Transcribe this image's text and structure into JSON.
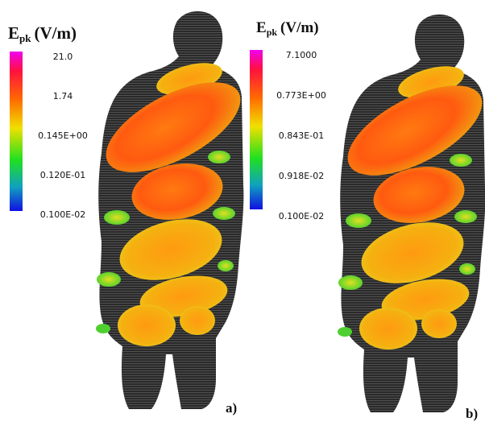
{
  "figure": {
    "panels": [
      {
        "label": "a)",
        "colorbar": {
          "title": {
            "symbol": "E",
            "subscript": "pk",
            "unit": "(V/m)"
          },
          "tick_labels": [
            "21.0",
            "1.74",
            "0.145E+00",
            "0.120E-01",
            "0.100E-02"
          ]
        }
      },
      {
        "label": "b)",
        "colorbar": {
          "title": {
            "symbol": "E",
            "subscript": "pk",
            "unit": "(V/m)"
          },
          "tick_labels": [
            "7.1000",
            "0.773E+00",
            "0.843E-01",
            "0.918E-02",
            "0.100E-02"
          ]
        }
      }
    ]
  }
}
